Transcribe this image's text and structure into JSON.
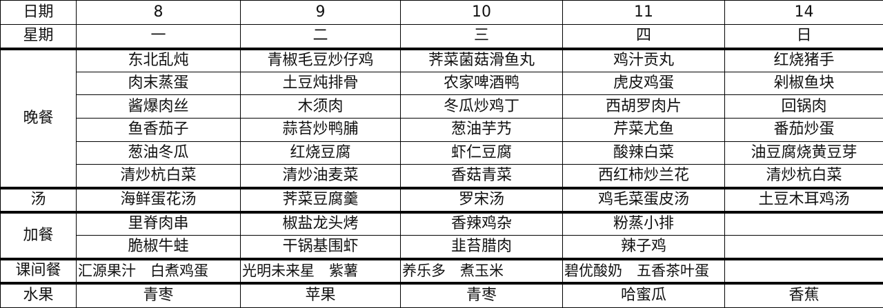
{
  "header": {
    "label": "日期",
    "dates": [
      "8",
      "9",
      "10",
      "11",
      "14"
    ]
  },
  "weekday": {
    "label": "星期",
    "days": [
      "一",
      "二",
      "三",
      "四",
      "日"
    ]
  },
  "dinner": {
    "label": "晚餐",
    "rows": [
      [
        "东北乱炖",
        "青椒毛豆炒仔鸡",
        "荠菜菌菇滑鱼丸",
        "鸡汁贡丸",
        "红烧猪手"
      ],
      [
        "肉末蒸蛋",
        "土豆炖排骨",
        "农家啤酒鸭",
        "虎皮鸡蛋",
        "剁椒鱼块"
      ],
      [
        "酱爆肉丝",
        "木须肉",
        "冬瓜炒鸡丁",
        "西胡罗肉片",
        "回锅肉"
      ],
      [
        "鱼香茄子",
        "蒜苔炒鸭脯",
        "葱油芋艿",
        "芹菜尤鱼",
        "番茄炒蛋"
      ],
      [
        "葱油冬瓜",
        "红烧豆腐",
        "虾仁豆腐",
        "酸辣白菜",
        "油豆腐烧黄豆芽"
      ],
      [
        "清炒杭白菜",
        "清炒油麦菜",
        "香菇青菜",
        "西红柿炒兰花",
        "清炒杭白菜"
      ]
    ]
  },
  "soup": {
    "label": "汤",
    "items": [
      "海鲜蛋花汤",
      "荠菜豆腐羹",
      "罗宋汤",
      "鸡毛菜蛋皮汤",
      "土豆木耳鸡汤"
    ]
  },
  "extra": {
    "label": "加餐",
    "rows": [
      [
        "里脊肉串",
        "椒盐龙头烤",
        "香辣鸡杂",
        "粉蒸小排",
        ""
      ],
      [
        "脆椒牛蛙",
        "干锅基围虾",
        "韭苔腊肉",
        "辣子鸡",
        ""
      ]
    ]
  },
  "snack": {
    "label": "课间餐",
    "items": [
      "汇源果汁　白煮鸡蛋",
      "光明未来星　紫薯",
      "养乐多　煮玉米",
      "碧优酸奶　五香茶叶蛋",
      ""
    ]
  },
  "fruit": {
    "label": "水果",
    "items": [
      "青枣",
      "苹果",
      "青枣",
      "哈蜜瓜",
      "香蕉"
    ]
  }
}
